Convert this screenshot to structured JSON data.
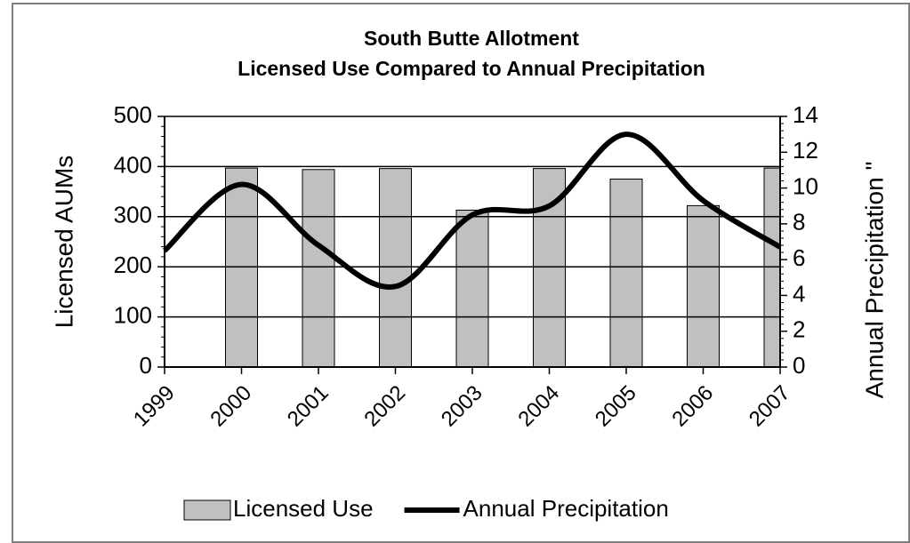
{
  "chart_data": {
    "type": "bar",
    "title": [
      "South Butte Allotment",
      "Licensed Use Compared to Annual Precipitation"
    ],
    "y_label": "Licensed AUMs",
    "y2_label": "Annual Precipitation \"",
    "categories": [
      "1999",
      "2000",
      "2001",
      "2002",
      "2003",
      "2004",
      "2005",
      "2006",
      "2007"
    ],
    "series": [
      {
        "name": "Licensed Use",
        "type": "bar",
        "color": "#c0c0c0",
        "values": [
          null,
          397,
          394,
          396,
          313,
          396,
          375,
          322,
          397
        ]
      },
      {
        "name": "Annual Precipitation",
        "type": "line",
        "axis": "y2",
        "color": "#000000",
        "smooth": true,
        "values": [
          6.5,
          10.2,
          6.8,
          4.5,
          8.5,
          9.0,
          13.0,
          9.3,
          6.7
        ]
      }
    ],
    "ylim": [
      0,
      500
    ],
    "yticks": [
      0,
      100,
      200,
      300,
      400,
      500
    ],
    "y2lim": [
      0,
      14
    ],
    "y2ticks": [
      0,
      2,
      4,
      6,
      8,
      10,
      12,
      14
    ],
    "grid": true,
    "legend": "bottom"
  }
}
